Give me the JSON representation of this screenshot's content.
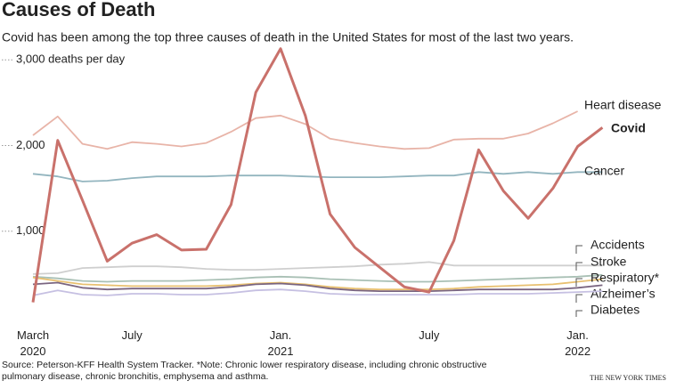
{
  "chart_data": {
    "type": "line",
    "title": "Causes of Death",
    "subtitle": "Covid has been among the top three causes of death in the United States for most of the last two years.",
    "source": "Source: Peterson-KFF Health System Tracker. *Note: Chronic lower respiratory disease, including chronic obstructive pulmonary disease, chronic bronchitis, emphysema and asthma.",
    "credit": "THE NEW YORK TIMES",
    "categories": [
      "March 2020",
      null,
      null,
      null,
      "July",
      null,
      null,
      null,
      null,
      null,
      "Jan. 2021",
      null,
      null,
      null,
      null,
      null,
      "July",
      null,
      null,
      null,
      null,
      null,
      "Jan. 2022",
      null
    ],
    "ylim": [
      0,
      3200
    ],
    "yticks": [
      {
        "value": 1000,
        "label": "1,000"
      },
      {
        "value": 2000,
        "label": "2,000"
      },
      {
        "value": 3000,
        "label": "3,000 deaths per day"
      }
    ],
    "series": [
      {
        "name": "Heart disease",
        "color": "#e8b4a8",
        "values": [
          2120,
          2340,
          2020,
          1960,
          2040,
          2020,
          1990,
          2030,
          2160,
          2320,
          2350,
          2250,
          2080,
          2030,
          1990,
          1960,
          1970,
          2070,
          2080,
          2080,
          2140,
          2260,
          2400,
          null
        ]
      },
      {
        "name": "Cancer",
        "color": "#93b5bf",
        "values": [
          1670,
          1640,
          1580,
          1590,
          1620,
          1640,
          1640,
          1640,
          1650,
          1650,
          1650,
          1640,
          1630,
          1630,
          1630,
          1640,
          1650,
          1650,
          1690,
          1670,
          1690,
          1670,
          1690,
          1690
        ]
      },
      {
        "name": "Accidents",
        "color": "#cfcfcf",
        "values": [
          500,
          510,
          570,
          580,
          590,
          590,
          580,
          560,
          550,
          550,
          560,
          570,
          580,
          590,
          610,
          620,
          640,
          600,
          600,
          600,
          600,
          600,
          600,
          600
        ]
      },
      {
        "name": "Stroke",
        "color": "#a9c0b5",
        "values": [
          470,
          450,
          420,
          410,
          420,
          420,
          420,
          430,
          440,
          460,
          470,
          460,
          440,
          430,
          420,
          410,
          410,
          420,
          430,
          440,
          450,
          460,
          470,
          490
        ]
      },
      {
        "name": "Respiratory*",
        "color": "#e8c070",
        "values": [
          460,
          420,
          380,
          370,
          360,
          360,
          360,
          360,
          370,
          390,
          400,
          380,
          350,
          330,
          320,
          320,
          320,
          330,
          350,
          360,
          370,
          380,
          410,
          440
        ]
      },
      {
        "name": "Alzheimer’s",
        "color": "#7a6580",
        "values": [
          380,
          400,
          340,
          320,
          330,
          330,
          330,
          330,
          350,
          380,
          390,
          370,
          330,
          310,
          300,
          300,
          300,
          310,
          320,
          320,
          320,
          320,
          340,
          370
        ]
      },
      {
        "name": "Diabetes",
        "color": "#c6c0e2",
        "values": [
          250,
          310,
          260,
          250,
          270,
          270,
          260,
          260,
          280,
          310,
          320,
          300,
          270,
          260,
          260,
          260,
          260,
          260,
          270,
          270,
          270,
          280,
          290,
          300
        ]
      },
      {
        "name": "Covid",
        "color": "#c9716b",
        "values": [
          170,
          2060,
          1360,
          650,
          860,
          960,
          780,
          790,
          1310,
          2620,
          3130,
          2350,
          1200,
          810,
          580,
          350,
          290,
          890,
          1950,
          1470,
          1150,
          1500,
          1990,
          2210
        ]
      }
    ]
  }
}
